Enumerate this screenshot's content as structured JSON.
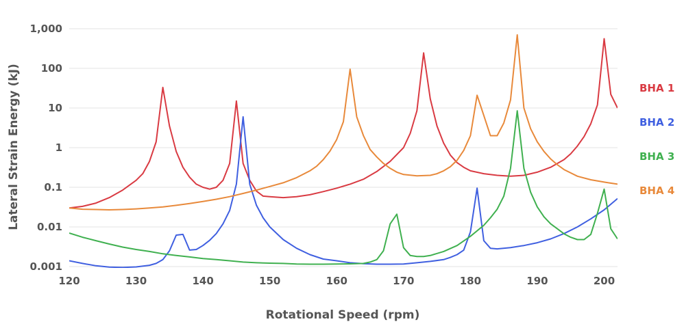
{
  "chart_data": {
    "type": "line",
    "title": "",
    "xlabel": "Rotational Speed (rpm)",
    "ylabel": "Lateral Strain Energy (kJ)",
    "xlim": [
      120,
      202
    ],
    "ylim": [
      0.001,
      1000
    ],
    "yscale": "log",
    "grid": "horizontal",
    "legend": "right",
    "x_ticks": [
      120,
      130,
      140,
      150,
      160,
      170,
      180,
      190,
      200
    ],
    "x_tick_labels": [
      "120",
      "130",
      "140",
      "150",
      "160",
      "170",
      "180",
      "190",
      "200"
    ],
    "y_ticks": [
      0.001,
      0.01,
      0.1,
      1,
      10,
      100,
      1000
    ],
    "y_tick_labels": [
      "0.001",
      "0.01",
      "0.1",
      "1",
      "10",
      "100",
      "1,000"
    ],
    "series": [
      {
        "name": "BHA 1",
        "color": "#d93a42",
        "points": [
          [
            120,
            0.03
          ],
          [
            122,
            0.033
          ],
          [
            124,
            0.04
          ],
          [
            126,
            0.055
          ],
          [
            128,
            0.085
          ],
          [
            130,
            0.15
          ],
          [
            131,
            0.22
          ],
          [
            132,
            0.45
          ],
          [
            133,
            1.4
          ],
          [
            134,
            33
          ],
          [
            135,
            3.5
          ],
          [
            136,
            0.8
          ],
          [
            137,
            0.32
          ],
          [
            138,
            0.18
          ],
          [
            139,
            0.12
          ],
          [
            140,
            0.1
          ],
          [
            141,
            0.09
          ],
          [
            142,
            0.1
          ],
          [
            143,
            0.15
          ],
          [
            144,
            0.4
          ],
          [
            145,
            15
          ],
          [
            146,
            0.4
          ],
          [
            147,
            0.15
          ],
          [
            148,
            0.08
          ],
          [
            149,
            0.06
          ],
          [
            150,
            0.058
          ],
          [
            152,
            0.055
          ],
          [
            154,
            0.058
          ],
          [
            156,
            0.065
          ],
          [
            158,
            0.078
          ],
          [
            160,
            0.095
          ],
          [
            162,
            0.12
          ],
          [
            164,
            0.16
          ],
          [
            166,
            0.25
          ],
          [
            168,
            0.45
          ],
          [
            170,
            1.0
          ],
          [
            171,
            2.3
          ],
          [
            172,
            8.5
          ],
          [
            173,
            245
          ],
          [
            174,
            17
          ],
          [
            175,
            3.5
          ],
          [
            176,
            1.3
          ],
          [
            177,
            0.65
          ],
          [
            178,
            0.42
          ],
          [
            179,
            0.32
          ],
          [
            180,
            0.26
          ],
          [
            182,
            0.22
          ],
          [
            184,
            0.2
          ],
          [
            186,
            0.19
          ],
          [
            188,
            0.2
          ],
          [
            190,
            0.24
          ],
          [
            192,
            0.32
          ],
          [
            194,
            0.5
          ],
          [
            195,
            0.7
          ],
          [
            196,
            1.1
          ],
          [
            197,
            1.9
          ],
          [
            198,
            4
          ],
          [
            199,
            12
          ],
          [
            200,
            560
          ],
          [
            201,
            22
          ],
          [
            202,
            10
          ]
        ]
      },
      {
        "name": "BHA 2",
        "color": "#3f5fe0",
        "points": [
          [
            120,
            0.0014
          ],
          [
            122,
            0.0012
          ],
          [
            124,
            0.00105
          ],
          [
            126,
            0.00097
          ],
          [
            128,
            0.00095
          ],
          [
            130,
            0.00098
          ],
          [
            132,
            0.00108
          ],
          [
            133,
            0.0012
          ],
          [
            134,
            0.0015
          ],
          [
            135,
            0.0025
          ],
          [
            136,
            0.0062
          ],
          [
            137,
            0.0065
          ],
          [
            138,
            0.0026
          ],
          [
            139,
            0.0027
          ],
          [
            140,
            0.0034
          ],
          [
            141,
            0.0046
          ],
          [
            142,
            0.0068
          ],
          [
            143,
            0.012
          ],
          [
            144,
            0.026
          ],
          [
            145,
            0.12
          ],
          [
            146,
            6.0
          ],
          [
            147,
            0.12
          ],
          [
            148,
            0.035
          ],
          [
            149,
            0.017
          ],
          [
            150,
            0.01
          ],
          [
            152,
            0.0048
          ],
          [
            154,
            0.0029
          ],
          [
            156,
            0.002
          ],
          [
            158,
            0.00155
          ],
          [
            160,
            0.0014
          ],
          [
            162,
            0.00125
          ],
          [
            164,
            0.00118
          ],
          [
            166,
            0.00115
          ],
          [
            168,
            0.00115
          ],
          [
            170,
            0.00116
          ],
          [
            172,
            0.00125
          ],
          [
            174,
            0.00135
          ],
          [
            176,
            0.0015
          ],
          [
            177,
            0.0017
          ],
          [
            178,
            0.002
          ],
          [
            179,
            0.0026
          ],
          [
            180,
            0.0075
          ],
          [
            181,
            0.095
          ],
          [
            182,
            0.0045
          ],
          [
            183,
            0.0029
          ],
          [
            184,
            0.0028
          ],
          [
            186,
            0.003
          ],
          [
            188,
            0.0034
          ],
          [
            190,
            0.004
          ],
          [
            192,
            0.005
          ],
          [
            194,
            0.0068
          ],
          [
            196,
            0.01
          ],
          [
            198,
            0.016
          ],
          [
            200,
            0.027
          ],
          [
            202,
            0.052
          ]
        ]
      },
      {
        "name": "BHA 3",
        "color": "#3fb04f",
        "points": [
          [
            120,
            0.007
          ],
          [
            122,
            0.0055
          ],
          [
            124,
            0.0045
          ],
          [
            126,
            0.0037
          ],
          [
            128,
            0.0031
          ],
          [
            130,
            0.0027
          ],
          [
            132,
            0.0024
          ],
          [
            134,
            0.0021
          ],
          [
            136,
            0.0019
          ],
          [
            138,
            0.00175
          ],
          [
            140,
            0.0016
          ],
          [
            142,
            0.0015
          ],
          [
            144,
            0.0014
          ],
          [
            146,
            0.0013
          ],
          [
            148,
            0.00125
          ],
          [
            150,
            0.00122
          ],
          [
            152,
            0.0012
          ],
          [
            154,
            0.00116
          ],
          [
            156,
            0.00115
          ],
          [
            158,
            0.00115
          ],
          [
            160,
            0.00116
          ],
          [
            162,
            0.00117
          ],
          [
            164,
            0.0012
          ],
          [
            165,
            0.0013
          ],
          [
            166,
            0.0015
          ],
          [
            167,
            0.0025
          ],
          [
            168,
            0.012
          ],
          [
            169,
            0.021
          ],
          [
            170,
            0.003
          ],
          [
            171,
            0.0019
          ],
          [
            172,
            0.0018
          ],
          [
            173,
            0.0018
          ],
          [
            174,
            0.0019
          ],
          [
            176,
            0.0024
          ],
          [
            178,
            0.0034
          ],
          [
            180,
            0.0058
          ],
          [
            182,
            0.011
          ],
          [
            183,
            0.017
          ],
          [
            184,
            0.028
          ],
          [
            185,
            0.06
          ],
          [
            186,
            0.3
          ],
          [
            187,
            8.5
          ],
          [
            188,
            0.3
          ],
          [
            189,
            0.075
          ],
          [
            190,
            0.032
          ],
          [
            191,
            0.018
          ],
          [
            192,
            0.012
          ],
          [
            193,
            0.009
          ],
          [
            194,
            0.0067
          ],
          [
            195,
            0.0055
          ],
          [
            196,
            0.0048
          ],
          [
            197,
            0.0048
          ],
          [
            198,
            0.0065
          ],
          [
            199,
            0.022
          ],
          [
            200,
            0.09
          ],
          [
            201,
            0.009
          ],
          [
            202,
            0.005
          ]
        ]
      },
      {
        "name": "BHA 4",
        "color": "#e8893a",
        "points": [
          [
            120,
            0.03
          ],
          [
            122,
            0.028
          ],
          [
            124,
            0.0275
          ],
          [
            126,
            0.027
          ],
          [
            128,
            0.0275
          ],
          [
            130,
            0.0285
          ],
          [
            132,
            0.03
          ],
          [
            134,
            0.032
          ],
          [
            136,
            0.035
          ],
          [
            138,
            0.039
          ],
          [
            140,
            0.044
          ],
          [
            142,
            0.05
          ],
          [
            144,
            0.058
          ],
          [
            146,
            0.07
          ],
          [
            148,
            0.085
          ],
          [
            150,
            0.105
          ],
          [
            152,
            0.13
          ],
          [
            154,
            0.175
          ],
          [
            156,
            0.26
          ],
          [
            157,
            0.34
          ],
          [
            158,
            0.5
          ],
          [
            159,
            0.82
          ],
          [
            160,
            1.6
          ],
          [
            161,
            4.5
          ],
          [
            162,
            95
          ],
          [
            163,
            6
          ],
          [
            164,
            2
          ],
          [
            165,
            0.9
          ],
          [
            166,
            0.58
          ],
          [
            167,
            0.4
          ],
          [
            168,
            0.3
          ],
          [
            169,
            0.24
          ],
          [
            170,
            0.21
          ],
          [
            172,
            0.195
          ],
          [
            174,
            0.2
          ],
          [
            175,
            0.22
          ],
          [
            176,
            0.26
          ],
          [
            177,
            0.33
          ],
          [
            178,
            0.48
          ],
          [
            179,
            0.85
          ],
          [
            180,
            2
          ],
          [
            181,
            21
          ],
          [
            182,
            6.5
          ],
          [
            183,
            2
          ],
          [
            184,
            2
          ],
          [
            185,
            4.2
          ],
          [
            186,
            16
          ],
          [
            187,
            700
          ],
          [
            188,
            10
          ],
          [
            189,
            3
          ],
          [
            190,
            1.4
          ],
          [
            191,
            0.8
          ],
          [
            192,
            0.52
          ],
          [
            193,
            0.37
          ],
          [
            194,
            0.28
          ],
          [
            196,
            0.19
          ],
          [
            198,
            0.155
          ],
          [
            200,
            0.135
          ],
          [
            202,
            0.12
          ]
        ]
      }
    ]
  }
}
